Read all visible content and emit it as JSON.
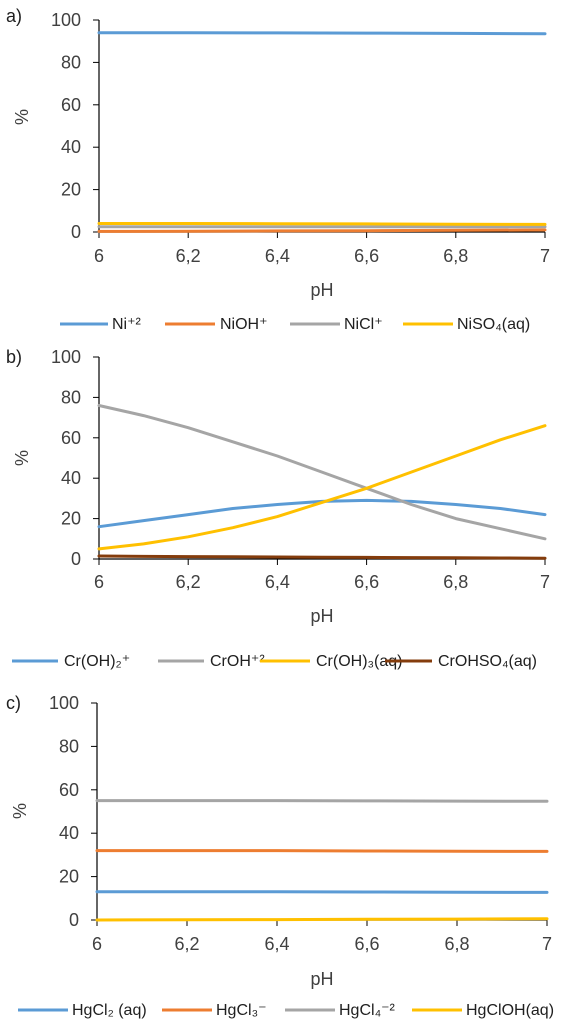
{
  "chart_data": [
    {
      "panel": "a)",
      "type": "line",
      "xlabel": "pH",
      "ylabel": "%",
      "xlim": [
        6,
        7
      ],
      "ylim": [
        0,
        100
      ],
      "xticks": [
        "6",
        "6,2",
        "6,4",
        "6,6",
        "6,8",
        "7"
      ],
      "yticks": [
        "0",
        "20",
        "40",
        "60",
        "80",
        "100"
      ],
      "grid": false,
      "legend_position": "bottom",
      "x": [
        6,
        6.2,
        6.4,
        6.6,
        6.8,
        7
      ],
      "series": [
        {
          "name": "Ni⁺²",
          "color": "#5B9BD5",
          "values": [
            94,
            94,
            93.9,
            93.8,
            93.7,
            93.5
          ]
        },
        {
          "name": "NiOH⁺",
          "color": "#ED7D31",
          "values": [
            0.3,
            0.4,
            0.5,
            0.6,
            0.8,
            1.0
          ]
        },
        {
          "name": "NiCl⁺",
          "color": "#A5A5A5",
          "values": [
            2.5,
            2.5,
            2.5,
            2.5,
            2.5,
            2.5
          ]
        },
        {
          "name": "NiSO₄(aq)",
          "color": "#FFC000",
          "values": [
            4.0,
            4.0,
            3.9,
            3.8,
            3.7,
            3.6
          ]
        }
      ]
    },
    {
      "panel": "b)",
      "type": "line",
      "xlabel": "pH",
      "ylabel": "%",
      "xlim": [
        6,
        7
      ],
      "ylim": [
        0,
        100
      ],
      "xticks": [
        "6",
        "6,2",
        "6,4",
        "6,6",
        "6,8",
        "7"
      ],
      "yticks": [
        "0",
        "20",
        "40",
        "60",
        "80",
        "100"
      ],
      "grid": false,
      "legend_position": "bottom",
      "x": [
        6,
        6.1,
        6.2,
        6.3,
        6.4,
        6.5,
        6.6,
        6.7,
        6.8,
        6.9,
        7
      ],
      "series": [
        {
          "name": "Cr(OH)₂⁺",
          "color": "#5B9BD5",
          "values": [
            16,
            19,
            22,
            25,
            27,
            28.5,
            29,
            28.5,
            27,
            25,
            22
          ]
        },
        {
          "name": "CrOH⁺²",
          "color": "#A5A5A5",
          "values": [
            76,
            71,
            65,
            58,
            51,
            43,
            35,
            27,
            20,
            15,
            10
          ]
        },
        {
          "name": "Cr(OH)₃(aq)",
          "color": "#FFC000",
          "values": [
            5,
            7.5,
            11,
            15.5,
            21,
            28,
            35,
            43,
            51,
            59,
            66
          ]
        },
        {
          "name": "CrOHSO₄(aq)",
          "color": "#843C0C",
          "values": [
            1.5,
            1.3,
            1.2,
            1.1,
            1.0,
            0.9,
            0.8,
            0.7,
            0.6,
            0.5,
            0.4
          ]
        }
      ]
    },
    {
      "panel": "c)",
      "type": "line",
      "xlabel": "pH",
      "ylabel": "%",
      "xlim": [
        6,
        7
      ],
      "ylim": [
        0,
        100
      ],
      "xticks": [
        "6",
        "6,2",
        "6,4",
        "6,6",
        "6,8",
        "7"
      ],
      "yticks": [
        "0",
        "20",
        "40",
        "60",
        "80",
        "100"
      ],
      "grid": false,
      "legend_position": "bottom",
      "x": [
        6,
        6.2,
        6.4,
        6.6,
        6.8,
        7
      ],
      "series": [
        {
          "name": "HgCl₂ (aq)",
          "color": "#5B9BD5",
          "values": [
            13,
            13,
            13,
            12.9,
            12.8,
            12.7
          ]
        },
        {
          "name": "HgCl₃⁻",
          "color": "#ED7D31",
          "values": [
            32,
            32,
            32,
            31.8,
            31.7,
            31.6
          ]
        },
        {
          "name": "HgCl₄⁻²",
          "color": "#A5A5A5",
          "values": [
            55,
            55,
            55,
            54.9,
            54.8,
            54.7
          ]
        },
        {
          "name": "HgClOH(aq)",
          "color": "#FFC000",
          "values": [
            0,
            0.1,
            0.2,
            0.3,
            0.4,
            0.6
          ]
        }
      ]
    }
  ]
}
